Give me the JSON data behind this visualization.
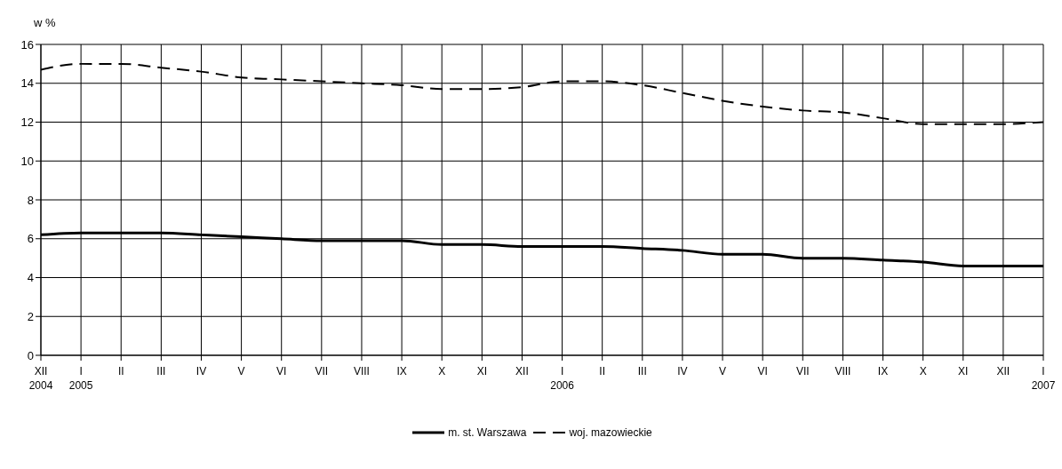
{
  "chart_data": {
    "type": "line",
    "ylabel": "w %",
    "categories": [
      "XII\n2004",
      "I\n2005",
      "II",
      "III",
      "IV",
      "V",
      "VI",
      "VII",
      "VIII",
      "IX",
      "X",
      "XI",
      "XII",
      "I\n2006",
      "II",
      "III",
      "IV",
      "V",
      "VI",
      "VII",
      "VIII",
      "IX",
      "X",
      "XI",
      "XII",
      "I\n2007"
    ],
    "series": [
      {
        "name": "m. st. Warszawa",
        "color": "#000000",
        "line_style": "solid",
        "values": [
          6.2,
          6.3,
          6.3,
          6.3,
          6.2,
          6.1,
          6.0,
          5.9,
          5.9,
          5.9,
          5.7,
          5.7,
          5.6,
          5.6,
          5.6,
          5.5,
          5.4,
          5.2,
          5.2,
          5.0,
          5.0,
          4.9,
          4.8,
          4.6,
          4.6,
          4.6
        ]
      },
      {
        "name": "woj. mazowieckie",
        "color": "#000000",
        "line_style": "dashed",
        "values": [
          14.7,
          15.0,
          15.0,
          14.8,
          14.6,
          14.3,
          14.2,
          14.1,
          14.0,
          13.9,
          13.7,
          13.7,
          13.8,
          14.1,
          14.1,
          13.9,
          13.5,
          13.1,
          12.8,
          12.6,
          12.5,
          12.2,
          11.9,
          11.9,
          11.9,
          12.0
        ]
      }
    ],
    "ylim": [
      0,
      16
    ],
    "yticks": [
      0,
      2,
      4,
      6,
      8,
      10,
      12,
      14,
      16
    ],
    "grid": true,
    "legend": "bottom",
    "marker": "none"
  }
}
